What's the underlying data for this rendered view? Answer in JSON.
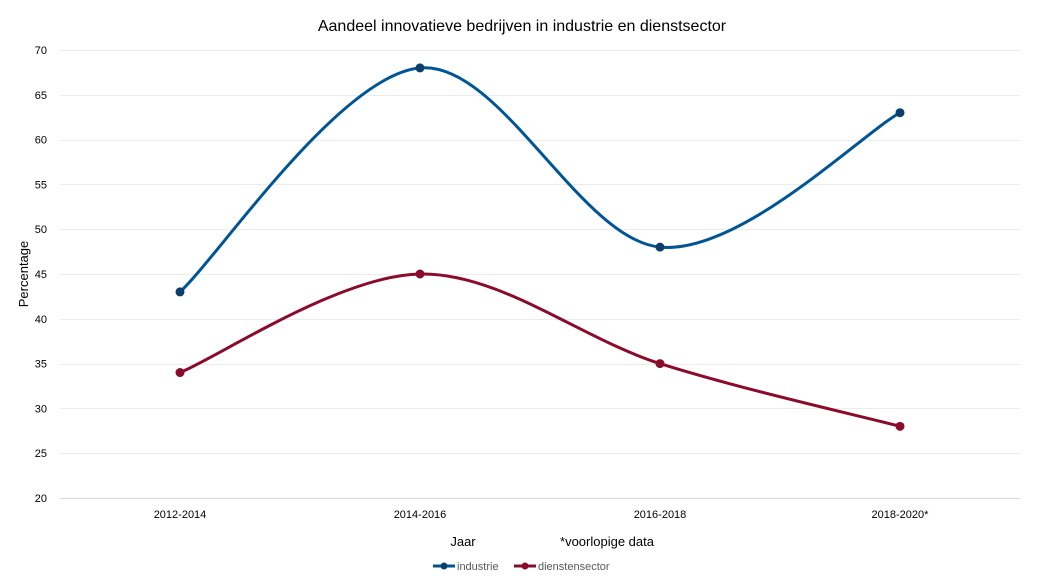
{
  "chart_data": {
    "type": "line",
    "title": "Aandeel innovatieve bedrijven in industrie en dienstsector",
    "xlabel": "Jaar",
    "x_note": "*voorlopige data",
    "ylabel": "Percentage",
    "categories": [
      "2012-2014",
      "2014-2016",
      "2016-2018",
      "2018-2020*"
    ],
    "ylim": [
      20,
      70
    ],
    "yticks": [
      20,
      25,
      30,
      35,
      40,
      45,
      50,
      55,
      60,
      65,
      70
    ],
    "grid": true,
    "smooth": true,
    "legend": "bottom-center",
    "series": [
      {
        "name": "industrie",
        "values": [
          43,
          68,
          48,
          63
        ],
        "color": "#005596",
        "marker_color": "#0b3f6b"
      },
      {
        "name": "dienstensector",
        "values": [
          34,
          45,
          35,
          28
        ],
        "color": "#8a0b2b",
        "marker_color": "#8a0b2b"
      }
    ]
  }
}
